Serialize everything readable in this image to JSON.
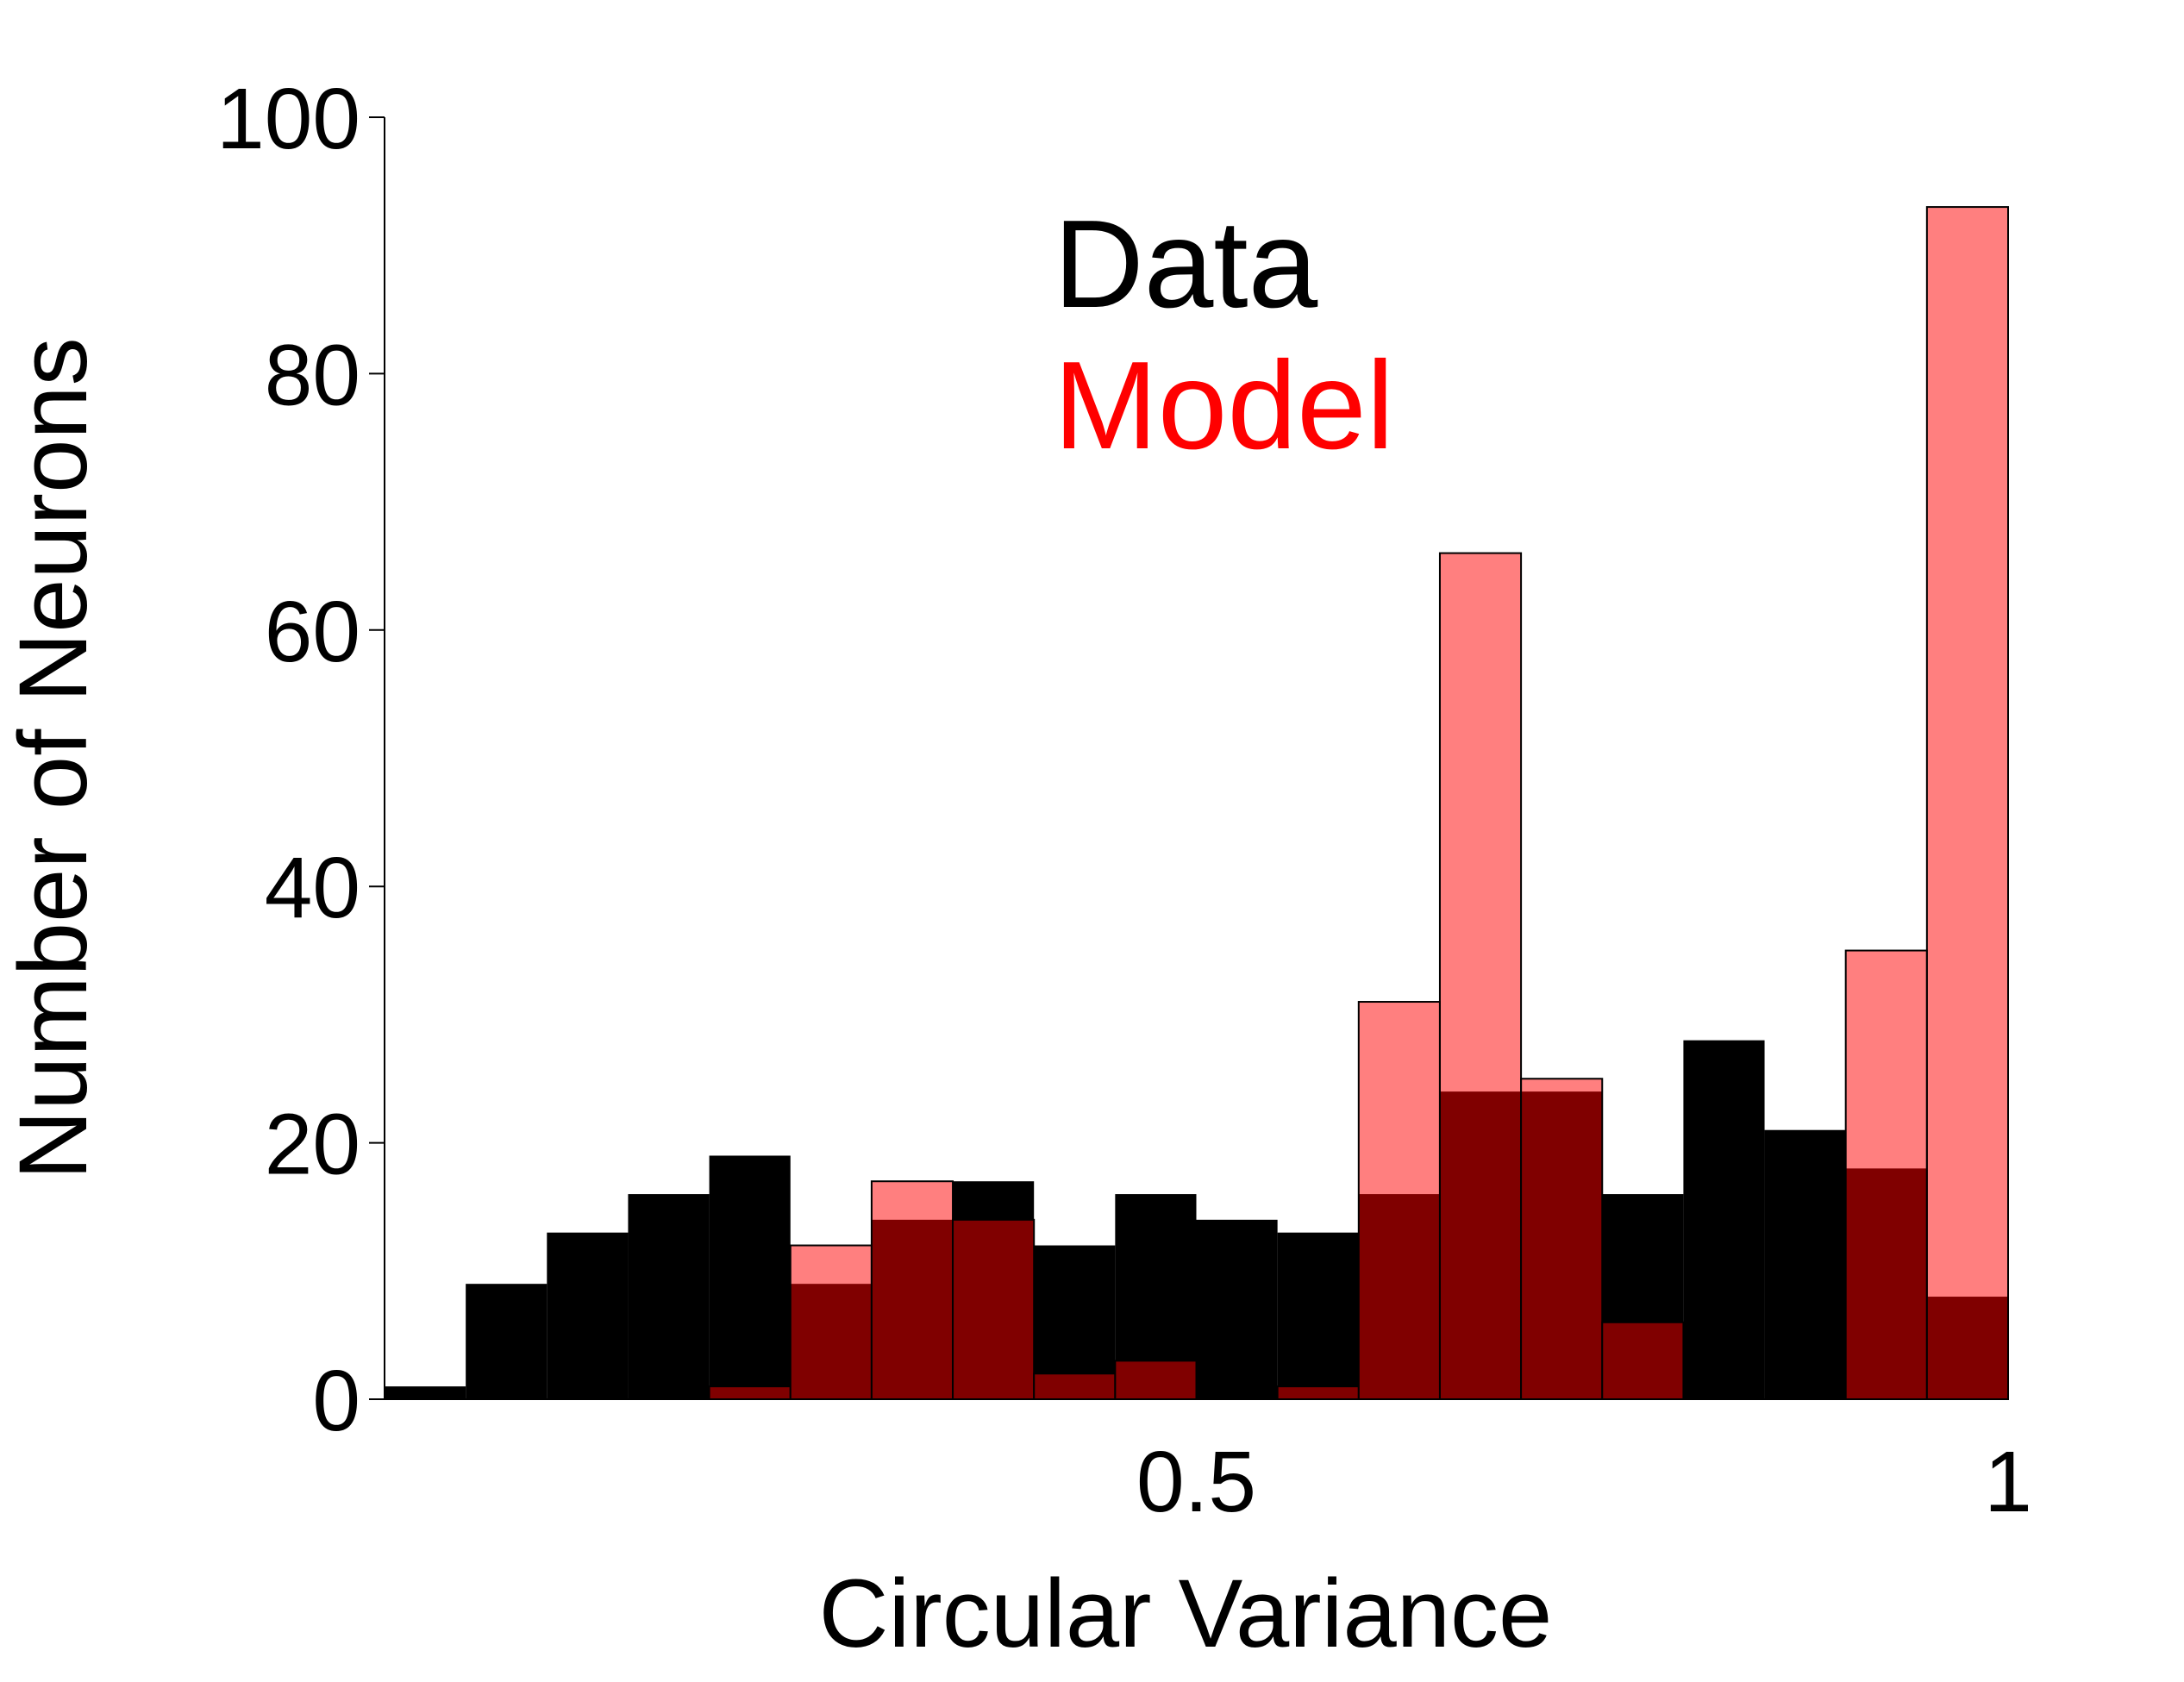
{
  "chart_data": {
    "type": "histogram",
    "xlabel": "Circular Variance",
    "ylabel": "Number of Neurons",
    "bins": [
      0,
      0.05,
      0.1,
      0.15,
      0.2,
      0.25,
      0.3,
      0.35,
      0.4,
      0.45,
      0.5,
      0.55,
      0.6,
      0.65,
      0.7,
      0.75,
      0.8,
      0.85,
      0.9,
      0.95,
      1
    ],
    "series": [
      {
        "name": "Data",
        "color": "#000000",
        "opacity": 1,
        "values": [
          1,
          9,
          13,
          16,
          19,
          9,
          14,
          17,
          12,
          16,
          14,
          13,
          16,
          24,
          24,
          16,
          28,
          21,
          18,
          8
        ]
      },
      {
        "name": "Model",
        "color": "#ff0000",
        "opacity": 0.5,
        "values": [
          0,
          0,
          0,
          0,
          1,
          12,
          17,
          14,
          2,
          3,
          0,
          1,
          31,
          66,
          25,
          6,
          0,
          0,
          35,
          93
        ]
      }
    ],
    "xlim": [
      0,
      1
    ],
    "xticks": [
      0.5,
      1
    ],
    "ylim": [
      0,
      100
    ],
    "yticks": [
      0,
      20,
      40,
      60,
      80,
      100
    ],
    "grid": false
  }
}
